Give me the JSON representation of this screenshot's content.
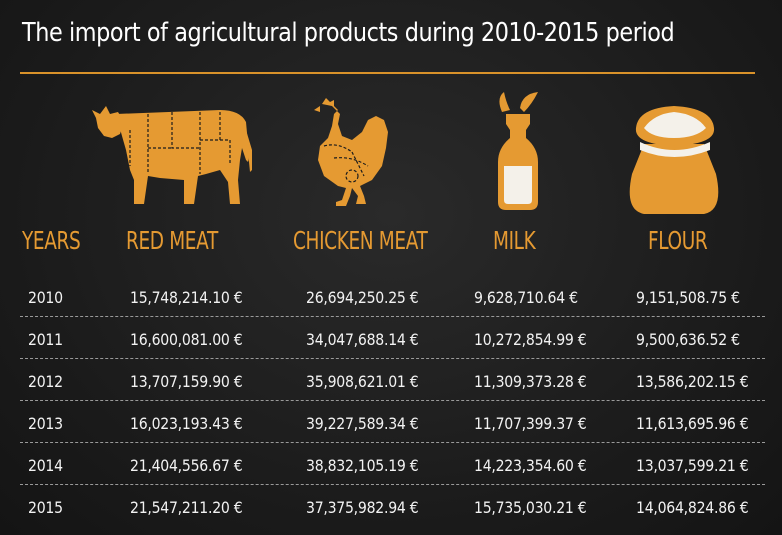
{
  "chart_data": {
    "type": "table",
    "title": "The import of agricultural products during 2010-2015 period",
    "columns": [
      "YEARS",
      "RED MEAT",
      "CHICKEN MEAT",
      "MILK",
      "FLOUR"
    ],
    "rows": [
      {
        "year": "2010",
        "red_meat": "15,748,214.10 €",
        "chicken_meat": "26,694,250.25 €",
        "milk": "9,628,710.64 €",
        "flour": "9,151,508.75 €"
      },
      {
        "year": "2011",
        "red_meat": "16,600,081.00 €",
        "chicken_meat": "34,047,688.14 €",
        "milk": "10,272,854.99 €",
        "flour": "9,500,636.52 €"
      },
      {
        "year": "2012",
        "red_meat": "13,707,159.90 €",
        "chicken_meat": "35,908,621.01 €",
        "milk": "11,309,373.28 €",
        "flour": "13,586,202.15 €"
      },
      {
        "year": "2013",
        "red_meat": "16,023,193.43 €",
        "chicken_meat": "39,227,589.34 €",
        "milk": "11,707,399.37 €",
        "flour": "11,613,695.96 €"
      },
      {
        "year": "2014",
        "red_meat": "21,404,556.67 €",
        "chicken_meat": "38,832,105.19 €",
        "milk": "14,223,354.60 €",
        "flour": "13,037,599.21 €"
      },
      {
        "year": "2015",
        "red_meat": "21,547,211.20 €",
        "chicken_meat": "37,375,982.94 €",
        "milk": "15,735,030.21 €",
        "flour": "14,064,824.86 €"
      }
    ]
  },
  "icons": [
    "cow-icon",
    "chicken-icon",
    "milk-bottle-icon",
    "flour-sack-icon"
  ],
  "colors": {
    "accent": "#e59a32",
    "background": "#1c1c1c",
    "text": "#f2f2f2",
    "separator": "#9a9a9a"
  }
}
